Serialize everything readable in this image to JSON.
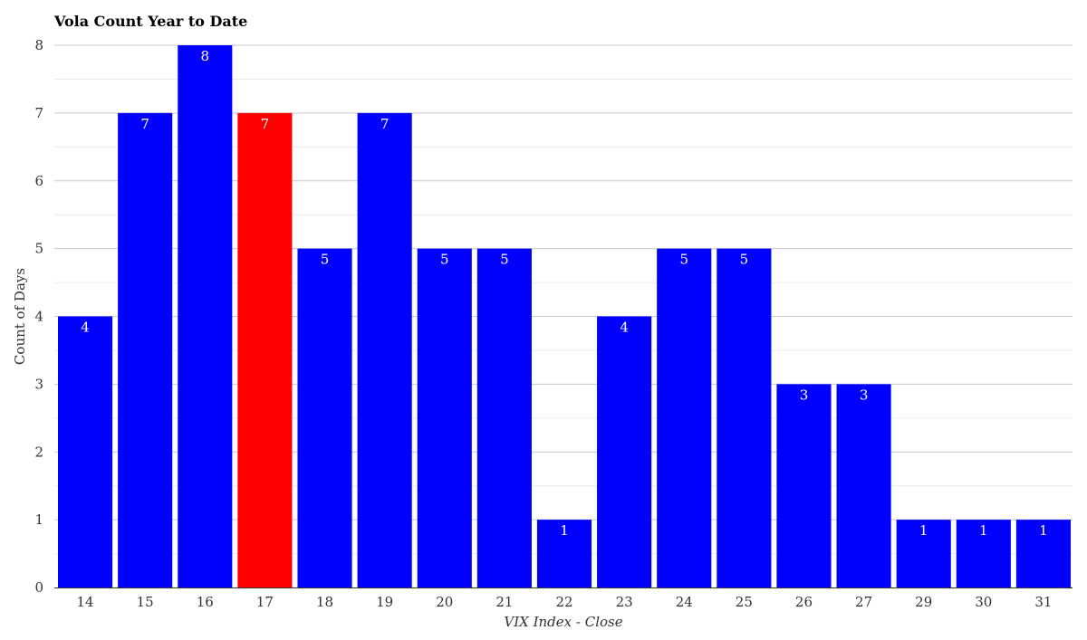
{
  "chart_data": {
    "type": "bar",
    "title": "Vola Count Year to Date",
    "xlabel": "VIX Index - Close",
    "ylabel": "Count of Days",
    "categories": [
      "14",
      "15",
      "16",
      "17",
      "18",
      "19",
      "20",
      "21",
      "22",
      "23",
      "24",
      "25",
      "26",
      "27",
      "29",
      "30",
      "31"
    ],
    "values": [
      4,
      7,
      8,
      7,
      5,
      7,
      5,
      5,
      1,
      4,
      5,
      5,
      3,
      3,
      1,
      1,
      1
    ],
    "ylim": [
      0,
      8
    ],
    "yticks": [
      0,
      1,
      2,
      3,
      4,
      5,
      6,
      7,
      8
    ],
    "highlight_category": "17",
    "colors": {
      "bar": "#0000ff",
      "highlight": "#ff0000",
      "label": "#ffffff",
      "grid": "#c8c8c8",
      "minor_grid": "#ececec"
    },
    "grid": true,
    "data_labels": true
  }
}
